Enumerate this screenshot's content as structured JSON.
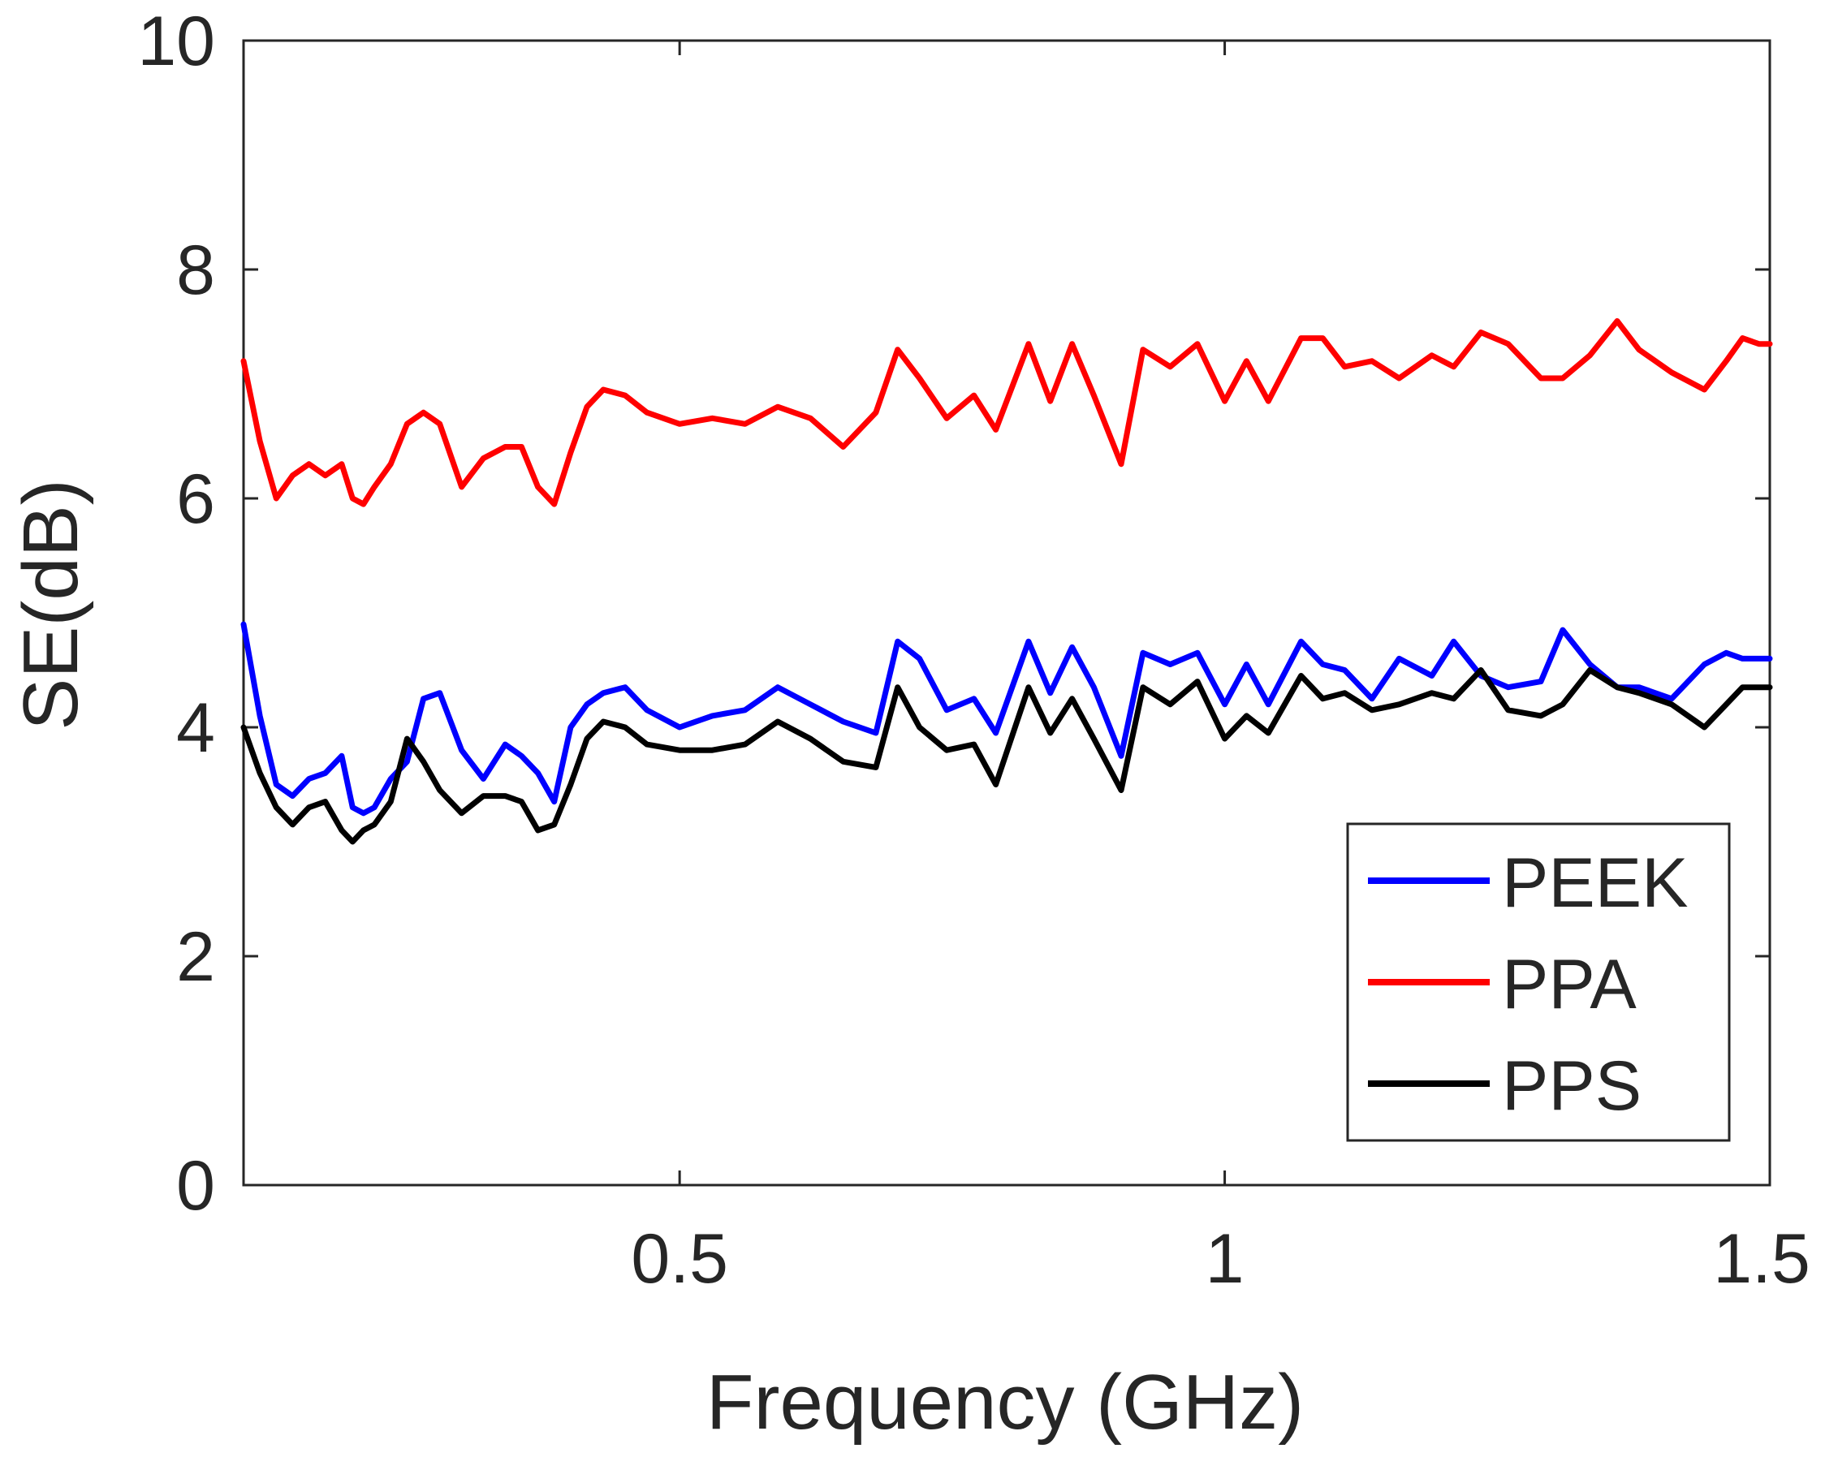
{
  "chart_data": {
    "type": "line",
    "title": "",
    "xlabel": "Frequency (GHz)",
    "ylabel": "SE(dB)",
    "xlim": [
      0.1,
      1.5
    ],
    "ylim": [
      0,
      10
    ],
    "x_ticks": [
      0.5,
      1,
      1.5
    ],
    "x_tick_labels": [
      "0.5",
      "1",
      "1.5"
    ],
    "y_ticks": [
      0,
      2,
      4,
      6,
      8,
      10
    ],
    "y_tick_labels": [
      "0",
      "2",
      "4",
      "6",
      "8",
      "10"
    ],
    "grid": false,
    "legend_position": "bottom-right",
    "x": [
      0.1,
      0.115,
      0.13,
      0.145,
      0.16,
      0.175,
      0.19,
      0.2,
      0.21,
      0.22,
      0.235,
      0.25,
      0.265,
      0.28,
      0.3,
      0.32,
      0.34,
      0.355,
      0.37,
      0.385,
      0.4,
      0.415,
      0.43,
      0.45,
      0.47,
      0.5,
      0.53,
      0.56,
      0.59,
      0.62,
      0.65,
      0.68,
      0.7,
      0.72,
      0.745,
      0.77,
      0.79,
      0.82,
      0.84,
      0.86,
      0.88,
      0.905,
      0.925,
      0.95,
      0.975,
      1.0,
      1.02,
      1.04,
      1.07,
      1.09,
      1.11,
      1.135,
      1.16,
      1.19,
      1.21,
      1.235,
      1.26,
      1.29,
      1.31,
      1.335,
      1.36,
      1.38,
      1.41,
      1.44,
      1.46,
      1.475,
      1.49,
      1.5
    ],
    "series": [
      {
        "name": "PEEK",
        "color": "#0000ff",
        "values": [
          4.9,
          4.1,
          3.5,
          3.4,
          3.55,
          3.6,
          3.75,
          3.3,
          3.25,
          3.3,
          3.55,
          3.7,
          4.25,
          4.3,
          3.8,
          3.55,
          3.85,
          3.75,
          3.6,
          3.35,
          4.0,
          4.2,
          4.3,
          4.35,
          4.15,
          4.0,
          4.1,
          4.15,
          4.35,
          4.2,
          4.05,
          3.95,
          4.75,
          4.6,
          4.15,
          4.25,
          3.95,
          4.75,
          4.3,
          4.7,
          4.35,
          3.75,
          4.65,
          4.55,
          4.65,
          4.2,
          4.55,
          4.2,
          4.75,
          4.55,
          4.5,
          4.25,
          4.6,
          4.45,
          4.75,
          4.45,
          4.35,
          4.4,
          4.85,
          4.55,
          4.35,
          4.35,
          4.25,
          4.55,
          4.65,
          4.6,
          4.6,
          4.6
        ]
      },
      {
        "name": "PPA",
        "color": "#ff0000",
        "values": [
          7.2,
          6.5,
          6.0,
          6.2,
          6.3,
          6.2,
          6.3,
          6.0,
          5.95,
          6.1,
          6.3,
          6.65,
          6.75,
          6.65,
          6.1,
          6.35,
          6.45,
          6.45,
          6.1,
          5.95,
          6.4,
          6.8,
          6.95,
          6.9,
          6.75,
          6.65,
          6.7,
          6.65,
          6.8,
          6.7,
          6.45,
          6.75,
          7.3,
          7.05,
          6.7,
          6.9,
          6.6,
          7.35,
          6.85,
          7.35,
          6.9,
          6.3,
          7.3,
          7.15,
          7.35,
          6.85,
          7.2,
          6.85,
          7.4,
          7.4,
          7.15,
          7.2,
          7.05,
          7.25,
          7.15,
          7.45,
          7.35,
          7.05,
          7.05,
          7.25,
          7.55,
          7.3,
          7.1,
          6.95,
          7.2,
          7.4,
          7.35,
          7.35
        ]
      },
      {
        "name": "PPS",
        "color": "#000000",
        "values": [
          4.0,
          3.6,
          3.3,
          3.15,
          3.3,
          3.35,
          3.1,
          3.0,
          3.1,
          3.15,
          3.35,
          3.9,
          3.7,
          3.45,
          3.25,
          3.4,
          3.4,
          3.35,
          3.1,
          3.15,
          3.5,
          3.9,
          4.05,
          4.0,
          3.85,
          3.8,
          3.8,
          3.85,
          4.05,
          3.9,
          3.7,
          3.65,
          4.35,
          4.0,
          3.8,
          3.85,
          3.5,
          4.35,
          3.95,
          4.25,
          3.9,
          3.45,
          4.35,
          4.2,
          4.4,
          3.9,
          4.1,
          3.95,
          4.45,
          4.25,
          4.3,
          4.15,
          4.2,
          4.3,
          4.25,
          4.5,
          4.15,
          4.1,
          4.2,
          4.5,
          4.35,
          4.3,
          4.2,
          4.0,
          4.2,
          4.35,
          4.35,
          4.35
        ]
      }
    ]
  }
}
